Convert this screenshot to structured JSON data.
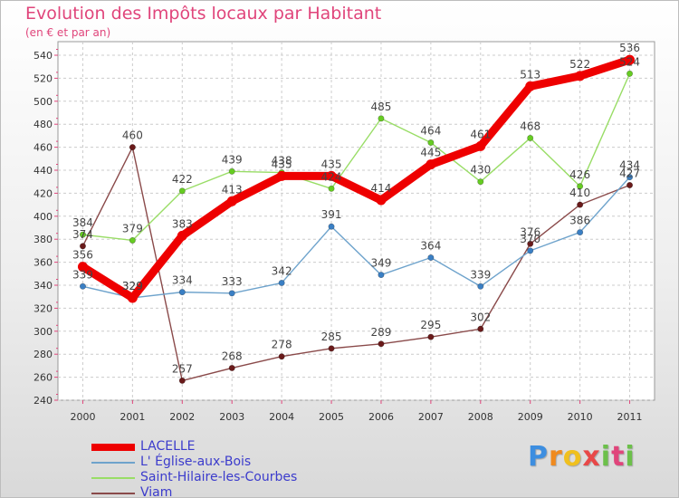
{
  "chart_data": {
    "type": "line",
    "title": "Evolution des Impôts locaux par Habitant",
    "subtitle": "(en € et par an)",
    "x": [
      "2000",
      "2001",
      "2002",
      "2003",
      "2004",
      "2005",
      "2006",
      "2007",
      "2008",
      "2009",
      "2010",
      "2011"
    ],
    "ylim": [
      240,
      540
    ],
    "yticks": [
      240,
      260,
      280,
      300,
      320,
      340,
      360,
      380,
      400,
      420,
      440,
      460,
      480,
      500,
      520,
      540
    ],
    "grid": true,
    "series": [
      {
        "name": "LACELLE",
        "color": "#ee0000",
        "point_color": "#ee0000",
        "values": [
          356,
          329,
          383,
          413,
          435,
          435,
          414,
          445,
          461,
          513,
          522,
          536
        ]
      },
      {
        "name": "L' Église-aux-Bois",
        "color": "#6ea3cc",
        "point_color": "#3a7fc4",
        "values": [
          339,
          329,
          334,
          333,
          342,
          391,
          349,
          364,
          339,
          370,
          386,
          434
        ]
      },
      {
        "name": "Saint-Hilaire-les-Courbes",
        "color": "#99dd66",
        "point_color": "#66cc22",
        "values": [
          384,
          379,
          422,
          439,
          438,
          424,
          485,
          464,
          430,
          468,
          426,
          524
        ]
      },
      {
        "name": "Viam",
        "color": "#8a4a4a",
        "point_color": "#6a1a1a",
        "values": [
          374,
          460,
          257,
          268,
          278,
          285,
          289,
          295,
          302,
          376,
          410,
          427
        ]
      }
    ],
    "legend": "bottom-left"
  },
  "branding": {
    "logo_text": "Proxiti"
  }
}
